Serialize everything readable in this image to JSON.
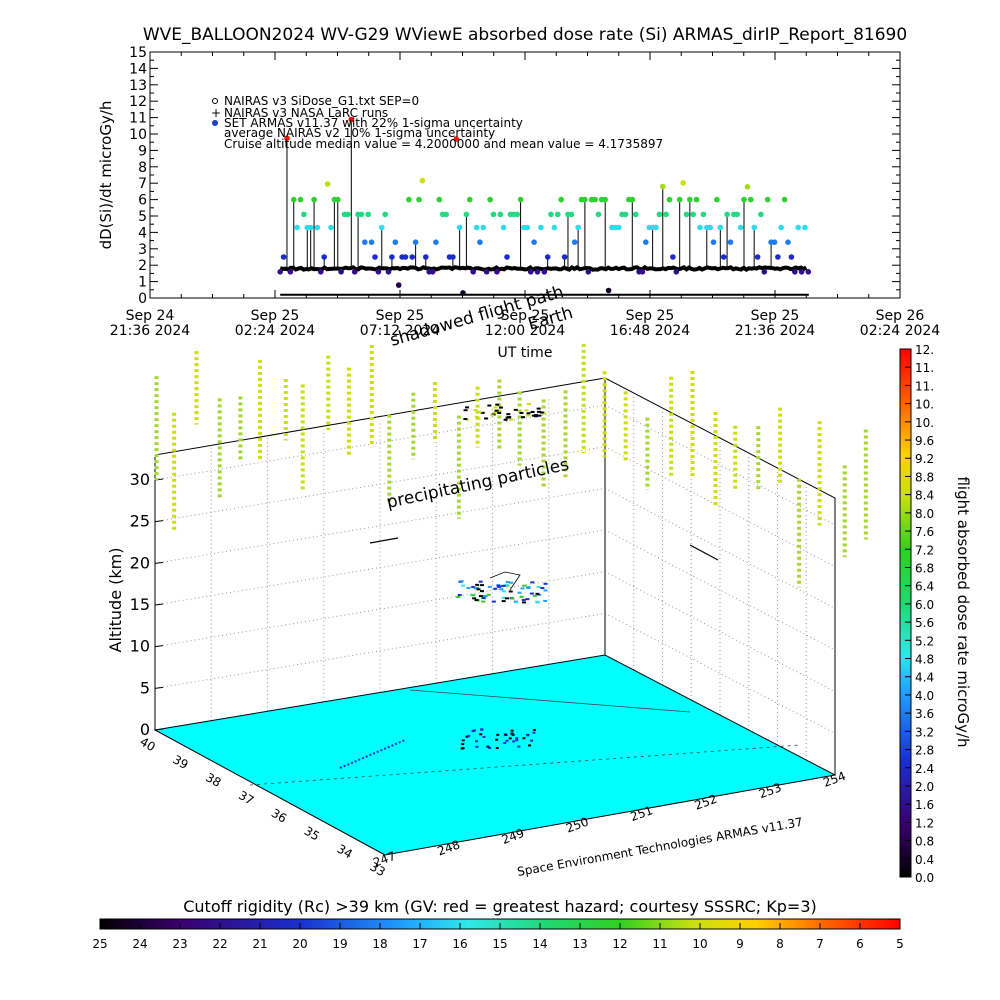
{
  "title": "WVE_BALLOON2024 WV-G29 WViewE absorbed dose rate (Si) ARMAS_dirIP_Report_81690",
  "chart_data": [
    {
      "type": "scatter",
      "ylabel": "dD(Si)/dt microGy/h",
      "xlabel": "UT time",
      "ylim": [
        0,
        15
      ],
      "yticks": [
        0,
        1,
        2,
        3,
        4,
        5,
        6,
        7,
        8,
        9,
        10,
        11,
        12,
        13,
        14,
        15
      ],
      "xticks": [
        {
          "date": "Sep 24",
          "time": "21:36 2024"
        },
        {
          "date": "Sep 25",
          "time": "02:24 2024"
        },
        {
          "date": "Sep 25",
          "time": "07:12 2024"
        },
        {
          "date": "Sep 25",
          "time": "12:00 2024"
        },
        {
          "date": "Sep 25",
          "time": "16:48 2024"
        },
        {
          "date": "Sep 25",
          "time": "21:36 2024"
        },
        {
          "date": "Sep 26",
          "time": "02:24 2024"
        }
      ],
      "xlim_hours": [
        0,
        28.8
      ],
      "legend": [
        "NAIRAS v3 SiDose_G1.txt SEP=0",
        "NAIRAS v3 NASA LaRC runs",
        "SET ARMAS v11.37 with 22% 1-sigma uncertainty",
        "average NAIRAS v2 10% 1-sigma uncertainty",
        "Cruise altitude median value = 4.2000000 and mean value = 4.1735897"
      ],
      "annotations": [
        "shadowed flight path",
        "Earth"
      ],
      "series": [
        {
          "name": "NAIRAS v3 SiDose_G1.txt SEP=0",
          "x_range_hours": [
            5.0,
            25.3
          ],
          "values_approx": 1.8
        },
        {
          "name": "SET ARMAS v11.37 with 22% 1-sigma uncertainty",
          "x_range_hours": [
            5.0,
            25.3
          ],
          "values_range": [
            0.3,
            11.2
          ],
          "typical": 4.2
        }
      ]
    },
    {
      "type": "scatter3d",
      "zlabel": "Altitude (km)",
      "zticks": [
        0,
        5,
        10,
        15,
        20,
        25,
        30
      ],
      "latitude_ticks": [
        33,
        34,
        35,
        36,
        37,
        38,
        39,
        40
      ],
      "longitude_ticks": [
        247,
        248,
        249,
        250,
        251,
        252,
        253,
        254
      ],
      "annotations": [
        "precipitating particles"
      ],
      "credit": "Space Environment Technologies ARMAS v11.37",
      "colorbar": {
        "label": "flight absorbed dose rate microGy/h",
        "ticks": [
          "0.0",
          "0.4",
          "0.8",
          "1.2",
          "1.6",
          "2.0",
          "2.4",
          "2.8",
          "3.2",
          "3.6",
          "4.0",
          "4.4",
          "4.8",
          "5.2",
          "5.6",
          "6.0",
          "6.4",
          "6.8",
          "7.2",
          "7.6",
          "8.0",
          "8.4",
          "8.8",
          "9.2",
          "9.6",
          "10.",
          "10.",
          "11.",
          "11.",
          "12."
        ]
      }
    },
    {
      "type": "colorbar",
      "title": "Cutoff rigidity (Rc) >39 km (GV: red = greatest hazard; courtesy SSSRC; Kp=3)",
      "ticks": [
        "25",
        "24",
        "23",
        "22",
        "21",
        "20",
        "19",
        "18",
        "17",
        "16",
        "15",
        "14",
        "13",
        "12",
        "11",
        "10",
        "9",
        "8",
        "7",
        "6",
        "5"
      ]
    }
  ]
}
